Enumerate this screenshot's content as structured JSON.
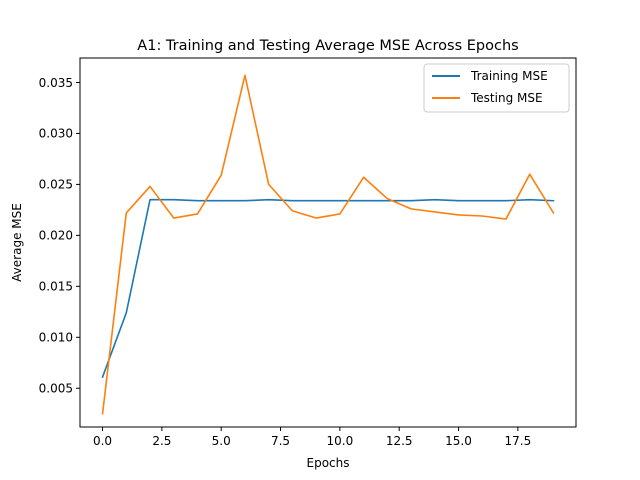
{
  "chart_data": {
    "type": "line",
    "title": "A1: Training and Testing Average MSE Across Epochs",
    "xlabel": "Epochs",
    "ylabel": "Average MSE",
    "xlim": [
      -0.95,
      19.95
    ],
    "ylim": [
      0.0012,
      0.0374
    ],
    "xticks": [
      0.0,
      2.5,
      5.0,
      7.5,
      10.0,
      12.5,
      15.0,
      17.5
    ],
    "xtick_labels": [
      "0.0",
      "2.5",
      "5.0",
      "7.5",
      "10.0",
      "12.5",
      "15.0",
      "17.5"
    ],
    "yticks": [
      0.005,
      0.01,
      0.015,
      0.02,
      0.025,
      0.03,
      0.035
    ],
    "ytick_labels": [
      "0.005",
      "0.010",
      "0.015",
      "0.020",
      "0.025",
      "0.030",
      "0.035"
    ],
    "grid": false,
    "legend_position": "top-right",
    "x": [
      0,
      1,
      2,
      3,
      4,
      5,
      6,
      7,
      8,
      9,
      10,
      11,
      12,
      13,
      14,
      15,
      16,
      17,
      18,
      19
    ],
    "series": [
      {
        "name": "Training MSE",
        "color": "#1f77b4",
        "values": [
          0.0061,
          0.0124,
          0.0235,
          0.0235,
          0.0234,
          0.0234,
          0.0234,
          0.0235,
          0.0234,
          0.0234,
          0.0234,
          0.0234,
          0.0234,
          0.0234,
          0.0235,
          0.0234,
          0.0234,
          0.0234,
          0.0235,
          0.0234
        ]
      },
      {
        "name": "Testing MSE",
        "color": "#ff7f0e",
        "values": [
          0.0025,
          0.0222,
          0.0248,
          0.0217,
          0.0221,
          0.0259,
          0.0357,
          0.025,
          0.0224,
          0.0217,
          0.0221,
          0.0257,
          0.0236,
          0.0226,
          0.0223,
          0.022,
          0.0219,
          0.0216,
          0.026,
          0.0222
        ]
      }
    ]
  }
}
